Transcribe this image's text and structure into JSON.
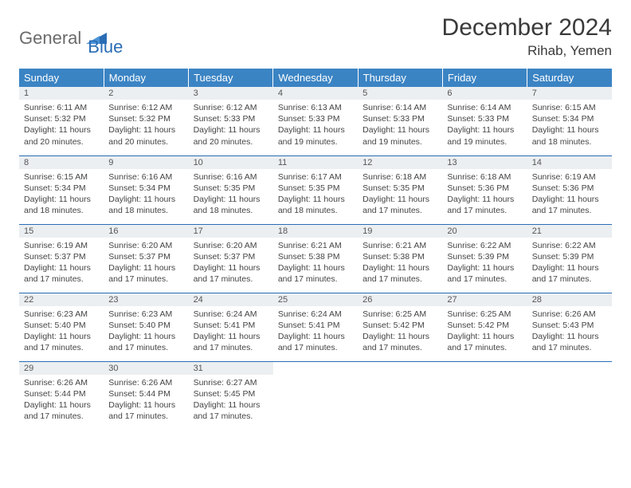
{
  "brand": {
    "text1": "General",
    "text2": "Blue",
    "mark_color": "#2a6db5"
  },
  "title": "December 2024",
  "location": "Rihab, Yemen",
  "colors": {
    "header_bg": "#3b84c4",
    "header_fg": "#ffffff",
    "daynum_bg": "#eceff1",
    "rule": "#2a6db5"
  },
  "weekdays": [
    "Sunday",
    "Monday",
    "Tuesday",
    "Wednesday",
    "Thursday",
    "Friday",
    "Saturday"
  ],
  "days": [
    {
      "n": 1,
      "sr": "6:11 AM",
      "ss": "5:32 PM",
      "dl": "11 hours and 20 minutes."
    },
    {
      "n": 2,
      "sr": "6:12 AM",
      "ss": "5:32 PM",
      "dl": "11 hours and 20 minutes."
    },
    {
      "n": 3,
      "sr": "6:12 AM",
      "ss": "5:33 PM",
      "dl": "11 hours and 20 minutes."
    },
    {
      "n": 4,
      "sr": "6:13 AM",
      "ss": "5:33 PM",
      "dl": "11 hours and 19 minutes."
    },
    {
      "n": 5,
      "sr": "6:14 AM",
      "ss": "5:33 PM",
      "dl": "11 hours and 19 minutes."
    },
    {
      "n": 6,
      "sr": "6:14 AM",
      "ss": "5:33 PM",
      "dl": "11 hours and 19 minutes."
    },
    {
      "n": 7,
      "sr": "6:15 AM",
      "ss": "5:34 PM",
      "dl": "11 hours and 18 minutes."
    },
    {
      "n": 8,
      "sr": "6:15 AM",
      "ss": "5:34 PM",
      "dl": "11 hours and 18 minutes."
    },
    {
      "n": 9,
      "sr": "6:16 AM",
      "ss": "5:34 PM",
      "dl": "11 hours and 18 minutes."
    },
    {
      "n": 10,
      "sr": "6:16 AM",
      "ss": "5:35 PM",
      "dl": "11 hours and 18 minutes."
    },
    {
      "n": 11,
      "sr": "6:17 AM",
      "ss": "5:35 PM",
      "dl": "11 hours and 18 minutes."
    },
    {
      "n": 12,
      "sr": "6:18 AM",
      "ss": "5:35 PM",
      "dl": "11 hours and 17 minutes."
    },
    {
      "n": 13,
      "sr": "6:18 AM",
      "ss": "5:36 PM",
      "dl": "11 hours and 17 minutes."
    },
    {
      "n": 14,
      "sr": "6:19 AM",
      "ss": "5:36 PM",
      "dl": "11 hours and 17 minutes."
    },
    {
      "n": 15,
      "sr": "6:19 AM",
      "ss": "5:37 PM",
      "dl": "11 hours and 17 minutes."
    },
    {
      "n": 16,
      "sr": "6:20 AM",
      "ss": "5:37 PM",
      "dl": "11 hours and 17 minutes."
    },
    {
      "n": 17,
      "sr": "6:20 AM",
      "ss": "5:37 PM",
      "dl": "11 hours and 17 minutes."
    },
    {
      "n": 18,
      "sr": "6:21 AM",
      "ss": "5:38 PM",
      "dl": "11 hours and 17 minutes."
    },
    {
      "n": 19,
      "sr": "6:21 AM",
      "ss": "5:38 PM",
      "dl": "11 hours and 17 minutes."
    },
    {
      "n": 20,
      "sr": "6:22 AM",
      "ss": "5:39 PM",
      "dl": "11 hours and 17 minutes."
    },
    {
      "n": 21,
      "sr": "6:22 AM",
      "ss": "5:39 PM",
      "dl": "11 hours and 17 minutes."
    },
    {
      "n": 22,
      "sr": "6:23 AM",
      "ss": "5:40 PM",
      "dl": "11 hours and 17 minutes."
    },
    {
      "n": 23,
      "sr": "6:23 AM",
      "ss": "5:40 PM",
      "dl": "11 hours and 17 minutes."
    },
    {
      "n": 24,
      "sr": "6:24 AM",
      "ss": "5:41 PM",
      "dl": "11 hours and 17 minutes."
    },
    {
      "n": 25,
      "sr": "6:24 AM",
      "ss": "5:41 PM",
      "dl": "11 hours and 17 minutes."
    },
    {
      "n": 26,
      "sr": "6:25 AM",
      "ss": "5:42 PM",
      "dl": "11 hours and 17 minutes."
    },
    {
      "n": 27,
      "sr": "6:25 AM",
      "ss": "5:42 PM",
      "dl": "11 hours and 17 minutes."
    },
    {
      "n": 28,
      "sr": "6:26 AM",
      "ss": "5:43 PM",
      "dl": "11 hours and 17 minutes."
    },
    {
      "n": 29,
      "sr": "6:26 AM",
      "ss": "5:44 PM",
      "dl": "11 hours and 17 minutes."
    },
    {
      "n": 30,
      "sr": "6:26 AM",
      "ss": "5:44 PM",
      "dl": "11 hours and 17 minutes."
    },
    {
      "n": 31,
      "sr": "6:27 AM",
      "ss": "5:45 PM",
      "dl": "11 hours and 17 minutes."
    }
  ],
  "labels": {
    "sunrise": "Sunrise:",
    "sunset": "Sunset:",
    "daylight": "Daylight:"
  }
}
